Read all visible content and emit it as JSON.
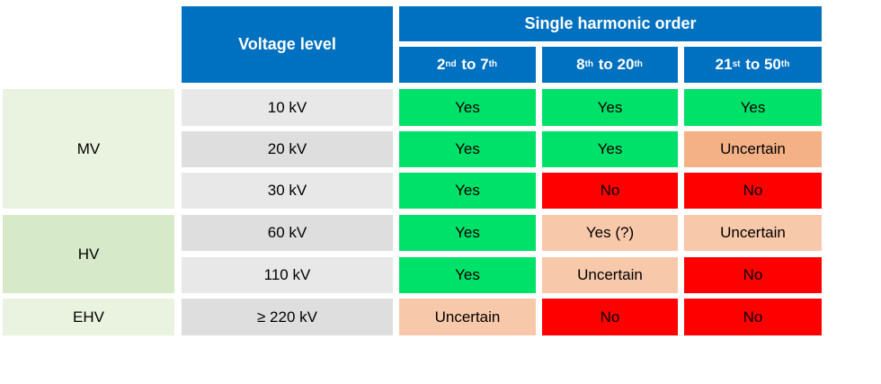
{
  "header": {
    "voltage_level": "Voltage level",
    "single_harmonic_order": "Single harmonic order",
    "ranges": [
      {
        "a_num": "2",
        "a_sup": "nd",
        "mid": " to ",
        "b_num": "7",
        "b_sup": "th"
      },
      {
        "a_num": "8",
        "a_sup": "th",
        "mid": " to ",
        "b_num": "20",
        "b_sup": "th"
      },
      {
        "a_num": "21",
        "a_sup": "st",
        "mid": " to ",
        "b_num": "50",
        "b_sup": "th"
      }
    ]
  },
  "groups": [
    "MV",
    "HV",
    "EHV"
  ],
  "rows": [
    {
      "voltage": "10 kV",
      "values": [
        "Yes",
        "Yes",
        "Yes"
      ]
    },
    {
      "voltage": "20 kV",
      "values": [
        "Yes",
        "Yes",
        "Uncertain"
      ]
    },
    {
      "voltage": "30 kV",
      "values": [
        "Yes",
        "No",
        "No"
      ]
    },
    {
      "voltage": "60 kV",
      "values": [
        "Yes",
        "Yes (?)",
        "Uncertain"
      ]
    },
    {
      "voltage": "110 kV",
      "values": [
        "Yes",
        "Uncertain",
        "No"
      ]
    },
    {
      "voltage": "≥ 220 kV",
      "values": [
        "Uncertain",
        "No",
        "No"
      ]
    }
  ],
  "colors": {
    "header_blue": "#0070c0",
    "yes_green": "#00e16a",
    "no_red": "#ff0000",
    "uncertain_peach": "#f8c8aa",
    "uncertain_orange": "#f4b186",
    "group_green_light": "#e9f3df",
    "group_green_mid": "#d6e9c8",
    "voltage_gray": "#dedede"
  }
}
